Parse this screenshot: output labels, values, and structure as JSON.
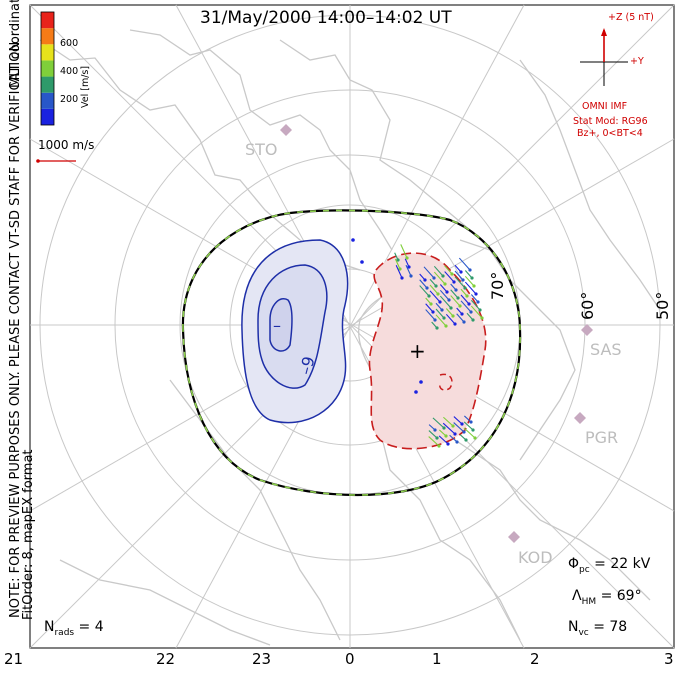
{
  "title": "31/May/2000 14:00–14:02 UT",
  "side_notes": {
    "coordinates": "MLT coordinates",
    "preview_note": "NOTE: FOR PREVIEW PURPOSES ONLY. PLEASE CONTACT VT-SD STAFF FOR VERIFICATION.",
    "fit_order": "FitOrder: 8, mapEX format"
  },
  "velocity_colorbar": {
    "unit_label": "Vel [m/s]",
    "ticks": [
      "600",
      "400",
      "200"
    ],
    "colors": [
      "#e8231b",
      "#f57b17",
      "#e6e21c",
      "#7fcf3a",
      "#2e9a6a",
      "#2857c9",
      "#1a22e0"
    ]
  },
  "reference_vector": {
    "label": "1000 m/s",
    "color": "#d00000"
  },
  "imf": {
    "z_label": "+Z (5 nT)",
    "y_label": "+Y",
    "source": "OMNI IMF",
    "model": "Stat Mod: RG96",
    "condition": "Bz+, 0<BT<4",
    "color": "#d00000"
  },
  "stations": [
    {
      "name": "STO",
      "label_color": "#bdbdbd"
    },
    {
      "name": "SAS",
      "label_color": "#bdbdbd"
    },
    {
      "name": "PGR",
      "label_color": "#bdbdbd"
    },
    {
      "name": "KOD",
      "label_color": "#bdbdbd"
    }
  ],
  "latitude_labels": [
    "70°",
    "60°",
    "50°"
  ],
  "potential_labels": [
    "–",
    "–9",
    "+"
  ],
  "stats": {
    "phi_symbol": "Φ",
    "phi_sub": "pc",
    "phi_value": " = 22 kV",
    "lambda_symbol": "Λ",
    "lambda_sub": "HM",
    "lambda_value": " = 69°",
    "nvc_symbol": "N",
    "nvc_sub": "vc",
    "nvc_value": " = 78",
    "nrads_symbol": "N",
    "nrads_sub": "rads",
    "nrads_value": " = 4"
  },
  "mlt_labels": [
    "21",
    "22",
    "23",
    "0",
    "1",
    "2",
    "3"
  ],
  "colors": {
    "negative_cell": "#1e2fa8",
    "positive_cell": "#c81e1e",
    "negative_fill": "#e4e6f4",
    "positive_fill": "#f6dcdc",
    "grid": "#c8c8c8",
    "coastline": "#c9c9c9",
    "boundary_dash": "#8fd14f"
  }
}
